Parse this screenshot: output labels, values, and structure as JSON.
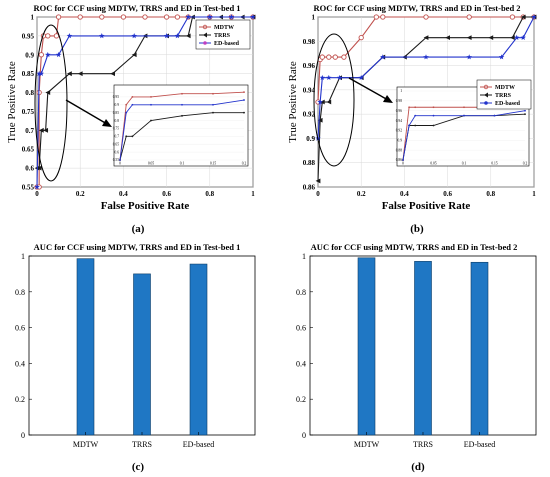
{
  "chart_data": [
    {
      "id": "a",
      "type": "line",
      "title": "ROC for CCF using MDTW, TRRS and ED in Test-bed 1",
      "caption": "(a)",
      "xlabel": "False Positive Rate",
      "ylabel": "True Positive Rate",
      "xlim": [
        0,
        1
      ],
      "ylim": [
        0.55,
        1
      ],
      "xticks": [
        "0",
        "0.2",
        "0.4",
        "0.6",
        "0.8",
        "1"
      ],
      "yticks": [
        "0.55",
        "0.6",
        "0.65",
        "0.7",
        "0.75",
        "0.8",
        "0.85",
        "0.9",
        "0.95",
        "1"
      ],
      "grid": true,
      "legend_position": "top-right",
      "series": [
        {
          "name": "MDTW",
          "color": "#c0504d",
          "marker": "circle",
          "x": [
            0,
            0.01,
            0.01,
            0.02,
            0.03,
            0.05,
            0.09,
            0.1,
            0.2,
            0.3,
            0.4,
            0.5,
            0.6,
            0.65,
            0.7,
            0.8,
            0.9,
            1
          ],
          "y": [
            0.55,
            0.55,
            0.8,
            0.9,
            0.95,
            0.95,
            0.95,
            1,
            1,
            1,
            1,
            1,
            1,
            1,
            1,
            1,
            1,
            1
          ]
        },
        {
          "name": "TRRS",
          "color": "#1a1a1a",
          "marker": "triangle",
          "x": [
            0,
            0.01,
            0.02,
            0.04,
            0.05,
            0.15,
            0.2,
            0.35,
            0.45,
            0.5,
            0.6,
            0.7,
            0.72,
            0.85,
            0.95,
            1
          ],
          "y": [
            0.6,
            0.6,
            0.7,
            0.7,
            0.8,
            0.85,
            0.85,
            0.85,
            0.9,
            0.95,
            0.95,
            0.95,
            1,
            1,
            1,
            1
          ]
        },
        {
          "name": "ED-based",
          "color": "#2233cc",
          "marker": "star",
          "x": [
            0,
            0.01,
            0.02,
            0.05,
            0.1,
            0.15,
            0.3,
            0.45,
            0.6,
            0.65,
            0.7,
            0.8,
            0.9,
            1
          ],
          "y": [
            0.55,
            0.85,
            0.85,
            0.9,
            0.9,
            0.95,
            0.95,
            0.95,
            0.95,
            0.95,
            1,
            1,
            1,
            1
          ]
        }
      ],
      "inset": {
        "xlim": [
          0,
          0.2
        ],
        "ylim": [
          0.55,
          1
        ],
        "xticks": [
          "0",
          "0.05",
          "0.1",
          "0.15",
          "0.2"
        ],
        "yticks": [
          "0.55",
          "0.6",
          "0.65",
          "0.7",
          "0.75",
          "0.8",
          "0.85",
          "0.9",
          "0.95"
        ],
        "series": [
          {
            "name": "MDTW",
            "x": [
              0,
              0.01,
              0.02,
              0.05,
              0.1,
              0.15,
              0.2
            ],
            "y": [
              0.55,
              0.9,
              0.95,
              0.95,
              0.97,
              0.97,
              0.98
            ]
          },
          {
            "name": "TRRS",
            "x": [
              0,
              0.01,
              0.02,
              0.05,
              0.1,
              0.15,
              0.2
            ],
            "y": [
              0.55,
              0.7,
              0.7,
              0.8,
              0.83,
              0.85,
              0.85
            ]
          },
          {
            "name": "ED-based",
            "x": [
              0,
              0.01,
              0.02,
              0.05,
              0.1,
              0.15,
              0.2
            ],
            "y": [
              0.55,
              0.85,
              0.9,
              0.9,
              0.9,
              0.9,
              0.93
            ]
          }
        ]
      }
    },
    {
      "id": "b",
      "type": "line",
      "title": "ROC for CCF using MDTW, TRRS and ED in Test-bed 2",
      "caption": "(b)",
      "xlabel": "False Positive Rate",
      "ylabel": "True Positive Rate",
      "xlim": [
        0,
        1
      ],
      "ylim": [
        0.86,
        1
      ],
      "xticks": [
        "0",
        "0.2",
        "0.4",
        "0.6",
        "0.8",
        "1"
      ],
      "yticks": [
        "0.86",
        "0.88",
        "0.9",
        "0.92",
        "0.94",
        "0.96",
        "0.98",
        "1"
      ],
      "grid": true,
      "legend_position": "right",
      "series": [
        {
          "name": "MDTW",
          "color": "#c0504d",
          "marker": "circle",
          "x": [
            0,
            0.01,
            0.02,
            0.05,
            0.08,
            0.12,
            0.2,
            0.27,
            0.3,
            0.5,
            0.7,
            0.9,
            0.95,
            1
          ],
          "y": [
            0.93,
            0.965,
            0.967,
            0.967,
            0.967,
            0.967,
            0.983,
            1,
            1,
            1,
            1,
            1,
            1,
            1
          ]
        },
        {
          "name": "TRRS",
          "color": "#1a1a1a",
          "marker": "triangle",
          "x": [
            0,
            0.01,
            0.02,
            0.05,
            0.1,
            0.2,
            0.3,
            0.4,
            0.5,
            0.6,
            0.7,
            0.8,
            0.9,
            0.95,
            1
          ],
          "y": [
            0.865,
            0.915,
            0.93,
            0.93,
            0.95,
            0.95,
            0.967,
            0.967,
            0.983,
            0.983,
            0.983,
            0.983,
            0.983,
            1,
            1
          ]
        },
        {
          "name": "ED-based",
          "color": "#2233cc",
          "marker": "star",
          "x": [
            0,
            0.01,
            0.02,
            0.05,
            0.1,
            0.2,
            0.3,
            0.5,
            0.7,
            0.85,
            0.92,
            0.95,
            1
          ],
          "y": [
            0.9,
            0.93,
            0.95,
            0.95,
            0.95,
            0.95,
            0.967,
            0.967,
            0.967,
            0.967,
            0.983,
            0.983,
            1
          ]
        }
      ],
      "inset": {
        "xlim": [
          0,
          0.2
        ],
        "ylim": [
          0.86,
          1
        ],
        "xticks": [
          "0",
          "0.05",
          "0.1",
          "0.15",
          "0.2"
        ],
        "yticks": [
          "0.86",
          "0.88",
          "0.9",
          "0.92",
          "0.94",
          "0.96",
          "0.98",
          "1"
        ],
        "series": [
          {
            "name": "MDTW",
            "x": [
              0,
              0.01,
              0.02,
              0.05,
              0.1,
              0.15,
              0.2
            ],
            "y": [
              0.86,
              0.967,
              0.967,
              0.967,
              0.967,
              0.967,
              0.983
            ]
          },
          {
            "name": "TRRS",
            "x": [
              0,
              0.01,
              0.02,
              0.05,
              0.1,
              0.15,
              0.2
            ],
            "y": [
              0.86,
              0.93,
              0.93,
              0.93,
              0.95,
              0.95,
              0.953
            ]
          },
          {
            "name": "ED-based",
            "x": [
              0,
              0.01,
              0.02,
              0.05,
              0.1,
              0.15,
              0.2
            ],
            "y": [
              0.86,
              0.93,
              0.95,
              0.95,
              0.95,
              0.95,
              0.96
            ]
          }
        ]
      }
    },
    {
      "id": "c",
      "type": "bar",
      "title": "AUC for CCF using MDTW, TRRS and ED in Test-bed 1",
      "caption": "(c)",
      "categories": [
        "MDTW",
        "TRRS",
        "ED-based"
      ],
      "values": [
        0.985,
        0.9,
        0.955
      ],
      "ylim": [
        0,
        1
      ],
      "yticks": [
        "0",
        "0.2",
        "0.4",
        "0.6",
        "0.8",
        "1"
      ],
      "color": "#1f77c4"
    },
    {
      "id": "d",
      "type": "bar",
      "title": "AUC for CCF using MDTW, TRRS and ED in Test-bed 2",
      "caption": "(d)",
      "categories": [
        "MDTW",
        "TRRS",
        "ED-based"
      ],
      "values": [
        0.99,
        0.97,
        0.965
      ],
      "ylim": [
        0,
        1
      ],
      "yticks": [
        "0",
        "0.2",
        "0.4",
        "0.6",
        "0.8",
        "1"
      ],
      "color": "#1f77c4"
    }
  ]
}
